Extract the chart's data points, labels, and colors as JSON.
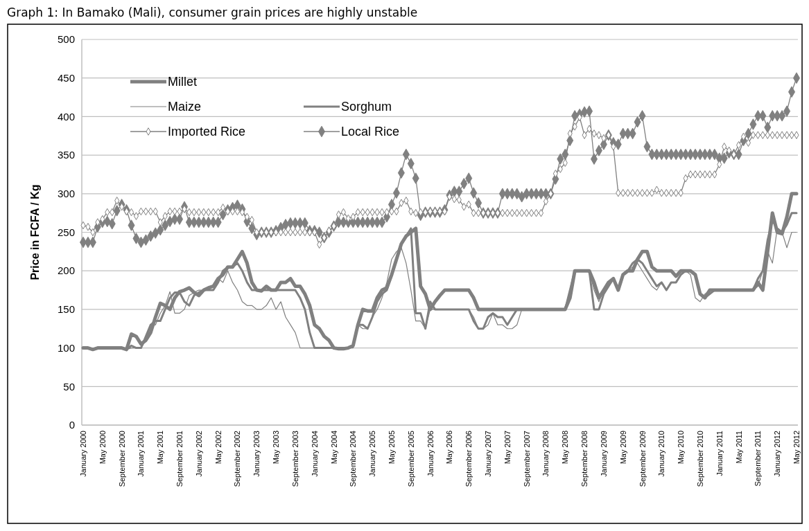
{
  "chart_data": {
    "type": "line",
    "title": "Graph 1: In Bamako (Mali), consumer grain prices are highly unstable",
    "ylabel": "Price in FCFA / Kg",
    "categories": [
      "January 2000",
      null,
      null,
      null,
      "May 2000",
      null,
      null,
      null,
      "September 2000",
      null,
      null,
      null,
      "January 2001",
      null,
      null,
      null,
      "May 2001",
      null,
      null,
      null,
      "September 2001",
      null,
      null,
      null,
      "January 2002",
      null,
      null,
      null,
      "May 2002",
      null,
      null,
      null,
      "September 2002",
      null,
      null,
      null,
      "January 2003",
      null,
      null,
      null,
      "May 2003",
      null,
      null,
      null,
      "September 2003",
      null,
      null,
      null,
      "January 2004",
      null,
      null,
      null,
      "May 2004",
      null,
      null,
      null,
      "September 2004",
      null,
      null,
      null,
      "January 2005",
      null,
      null,
      null,
      "May 2005",
      null,
      null,
      null,
      "September 2005",
      null,
      null,
      null,
      "January 2006",
      null,
      null,
      null,
      "May 2006",
      null,
      null,
      null,
      "September 2006",
      null,
      null,
      null,
      "January 2007",
      null,
      null,
      null,
      "May 2007",
      null,
      null,
      null,
      "September 2007",
      null,
      null,
      null,
      "January 2008",
      null,
      null,
      null,
      "May 2008",
      null,
      null,
      null,
      "September 2008",
      null,
      null,
      null,
      "January 2009",
      null,
      null,
      null,
      "May 2009",
      null,
      null,
      null,
      "September 2009",
      null,
      null,
      null,
      "January 2010",
      null,
      null,
      null,
      "May 2010",
      null,
      null,
      null,
      "September 2010",
      null,
      null,
      null,
      "January 2011",
      null,
      null,
      null,
      "May 2011",
      null,
      null,
      null,
      "September 2011",
      null,
      null,
      null,
      "January 2012",
      null,
      null,
      null,
      "May 2012"
    ],
    "ylim": [
      0,
      500
    ],
    "yticks": [
      0,
      50,
      100,
      150,
      200,
      250,
      300,
      350,
      400,
      450,
      500
    ],
    "grid": "y",
    "legend": "top left",
    "series": [
      {
        "name": "Millet",
        "color": "#808080",
        "marker": "none",
        "values": [
          100,
          100,
          98,
          100,
          100,
          100,
          100,
          100,
          100,
          98,
          118,
          115,
          105,
          110,
          120,
          140,
          158,
          155,
          150,
          165,
          173,
          175,
          178,
          172,
          168,
          175,
          178,
          180,
          190,
          195,
          205,
          205,
          215,
          225,
          210,
          185,
          175,
          174,
          180,
          175,
          175,
          185,
          185,
          190,
          180,
          180,
          170,
          155,
          130,
          125,
          115,
          110,
          100,
          99,
          99,
          100,
          103,
          130,
          150,
          148,
          148,
          165,
          175,
          178,
          195,
          215,
          235,
          245,
          250,
          255,
          180,
          170,
          150,
          160,
          168,
          175,
          175,
          175,
          175,
          175,
          175,
          165,
          150,
          150,
          150,
          150,
          150,
          150,
          150,
          150,
          150,
          150,
          150,
          150,
          150,
          150,
          150,
          150,
          150,
          150,
          150,
          165,
          200,
          200,
          200,
          200,
          185,
          165,
          175,
          185,
          190,
          175,
          195,
          200,
          200,
          215,
          225,
          225,
          205,
          200,
          200,
          200,
          200,
          193,
          200,
          200,
          200,
          195,
          170,
          165,
          175,
          175,
          175,
          175,
          175,
          175,
          175,
          175,
          175,
          175,
          185,
          175,
          225,
          275,
          250,
          248,
          270,
          300,
          300
        ]
      },
      {
        "name": "Sorghum",
        "color": "#808080",
        "marker": "none",
        "values": [
          100,
          100,
          98,
          100,
          100,
          100,
          100,
          100,
          100,
          98,
          103,
          100,
          100,
          115,
          130,
          135,
          135,
          150,
          165,
          172,
          172,
          160,
          155,
          168,
          172,
          175,
          175,
          175,
          185,
          200,
          205,
          205,
          210,
          200,
          185,
          175,
          175,
          175,
          175,
          175,
          175,
          175,
          175,
          175,
          175,
          165,
          150,
          120,
          100,
          100,
          100,
          100,
          100,
          100,
          100,
          100,
          102,
          130,
          130,
          125,
          140,
          160,
          170,
          175,
          195,
          215,
          235,
          245,
          255,
          145,
          145,
          125,
          160,
          150,
          150,
          150,
          150,
          150,
          150,
          150,
          150,
          135,
          125,
          125,
          140,
          145,
          140,
          140,
          130,
          140,
          150,
          150,
          150,
          150,
          150,
          150,
          150,
          150,
          150,
          150,
          150,
          175,
          200,
          200,
          200,
          200,
          150,
          150,
          170,
          180,
          190,
          175,
          195,
          200,
          210,
          215,
          210,
          200,
          190,
          180,
          185,
          175,
          185,
          185,
          195,
          200,
          200,
          195,
          170,
          165,
          170,
          175,
          175,
          175,
          175,
          175,
          175,
          175,
          175,
          175,
          190,
          200,
          240,
          265,
          255,
          250,
          260,
          275,
          275
        ]
      },
      {
        "name": "Maize",
        "color": "#808080",
        "marker": "none",
        "values": [
          100,
          100,
          98,
          100,
          100,
          100,
          100,
          100,
          100,
          98,
          100,
          100,
          100,
          110,
          128,
          130,
          145,
          155,
          173,
          145,
          145,
          150,
          168,
          172,
          175,
          175,
          175,
          180,
          190,
          185,
          200,
          185,
          175,
          160,
          155,
          155,
          150,
          150,
          155,
          165,
          150,
          160,
          140,
          130,
          120,
          100,
          100,
          100,
          100,
          100,
          100,
          100,
          100,
          100,
          100,
          100,
          100,
          130,
          125,
          125,
          140,
          150,
          165,
          185,
          215,
          225,
          230,
          210,
          175,
          135,
          135,
          125,
          150,
          150,
          150,
          150,
          150,
          150,
          150,
          150,
          150,
          140,
          125,
          125,
          130,
          145,
          130,
          130,
          125,
          125,
          130,
          150,
          150,
          150,
          150,
          150,
          150,
          150,
          150,
          150,
          150,
          170,
          200,
          200,
          200,
          200,
          175,
          160,
          175,
          185,
          190,
          175,
          195,
          200,
          205,
          210,
          200,
          190,
          180,
          175,
          185,
          175,
          185,
          185,
          195,
          200,
          195,
          165,
          160,
          170,
          175,
          175,
          175,
          175,
          175,
          175,
          175,
          175,
          175,
          175,
          180,
          200,
          225,
          210,
          255,
          250,
          230,
          250,
          250
        ]
      },
      {
        "name": "Local Rice",
        "color": "#808080",
        "marker": "diamond",
        "values": [
          237,
          237,
          237,
          257,
          263,
          264,
          261,
          278,
          286,
          279,
          259,
          242,
          237,
          240,
          245,
          249,
          253,
          259,
          264,
          267,
          267,
          283,
          263,
          263,
          263,
          263,
          263,
          263,
          263,
          273,
          279,
          282,
          285,
          280,
          264,
          255,
          247,
          250,
          250,
          250,
          252,
          256,
          260,
          262,
          262,
          262,
          262,
          252,
          252,
          250,
          243,
          250,
          258,
          263,
          263,
          263,
          263,
          263,
          263,
          263,
          263,
          263,
          263,
          270,
          286,
          301,
          327,
          351,
          339,
          320,
          272,
          276,
          276,
          276,
          276,
          279,
          298,
          303,
          303,
          313,
          320,
          301,
          288,
          275,
          275,
          275,
          275,
          300,
          300,
          300,
          300,
          296,
          300,
          300,
          300,
          300,
          300,
          300,
          319,
          345,
          351,
          369,
          401,
          403,
          406,
          407,
          345,
          356,
          364,
          376,
          366,
          364,
          378,
          378,
          378,
          393,
          401,
          361,
          351,
          351,
          351,
          351,
          351,
          351,
          351,
          351,
          351,
          351,
          351,
          351,
          351,
          351,
          346,
          346,
          353,
          351,
          351,
          369,
          378,
          390,
          401,
          401,
          386,
          401,
          401,
          401,
          407,
          432,
          450
        ]
      },
      {
        "name": "Imported Rice",
        "color": "#808080",
        "marker": "diamond",
        "values": [
          259,
          257,
          250,
          263,
          267,
          276,
          276,
          291,
          283,
          277,
          276,
          271,
          277,
          277,
          277,
          277,
          263,
          271,
          277,
          277,
          277,
          280,
          276,
          276,
          276,
          276,
          276,
          276,
          276,
          282,
          277,
          277,
          277,
          276,
          270,
          266,
          250,
          250,
          250,
          250,
          250,
          250,
          250,
          250,
          250,
          250,
          250,
          250,
          250,
          234,
          243,
          252,
          258,
          273,
          276,
          268,
          270,
          276,
          276,
          276,
          276,
          276,
          276,
          276,
          277,
          277,
          288,
          291,
          277,
          275,
          276,
          276,
          277,
          277,
          277,
          277,
          296,
          293,
          292,
          283,
          286,
          275,
          275,
          275,
          275,
          275,
          275,
          275,
          275,
          275,
          275,
          275,
          275,
          275,
          275,
          275,
          290,
          300,
          326,
          332,
          340,
          378,
          387,
          399,
          376,
          384,
          378,
          376,
          372,
          376,
          361,
          301,
          301,
          301,
          301,
          301,
          301,
          301,
          301,
          305,
          301,
          301,
          301,
          301,
          301,
          320,
          325,
          325,
          325,
          325,
          325,
          325,
          338,
          361,
          356,
          351,
          363,
          374,
          366,
          376,
          376,
          376,
          376,
          376,
          376,
          376,
          376,
          376,
          376
        ]
      }
    ]
  }
}
